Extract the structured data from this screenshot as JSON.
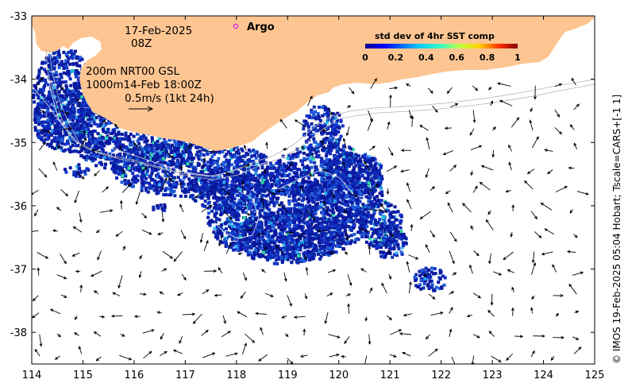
{
  "map": {
    "date": "17-Feb-2025",
    "hour": "08Z",
    "legend_line1": "200m  NRT00 GSL",
    "legend_line2": "1000m14-Feb 18:00Z",
    "scale_label": "0.5m/s (1kt 24h)",
    "argo_label": "Argo",
    "credit": "© IMOS 19-Feb-2025 05:04 Hobart; Tscale=CARS+[-1 1]",
    "colorbar": {
      "title": "std dev of 4hr SST comp",
      "ticks": [
        "0",
        "0.2",
        "0.4",
        "0.6",
        "0.8",
        "1"
      ],
      "range": [
        0,
        1
      ]
    },
    "x_axis": {
      "ticks": [
        "114",
        "115",
        "116",
        "117",
        "118",
        "119",
        "120",
        "121",
        "122",
        "123",
        "124",
        "125"
      ],
      "range": [
        114,
        125
      ]
    },
    "y_axis": {
      "ticks": [
        "-33",
        "-34",
        "-35",
        "-36",
        "-37",
        "-38"
      ],
      "range": [
        -38.5,
        -33
      ]
    },
    "colors": {
      "land": "#fdc592",
      "sst_low": "#0a1896",
      "sst_mid": "#1e5bd8",
      "bathymetry": "#b4b4b4",
      "argo_marker": "#e020e0"
    }
  }
}
